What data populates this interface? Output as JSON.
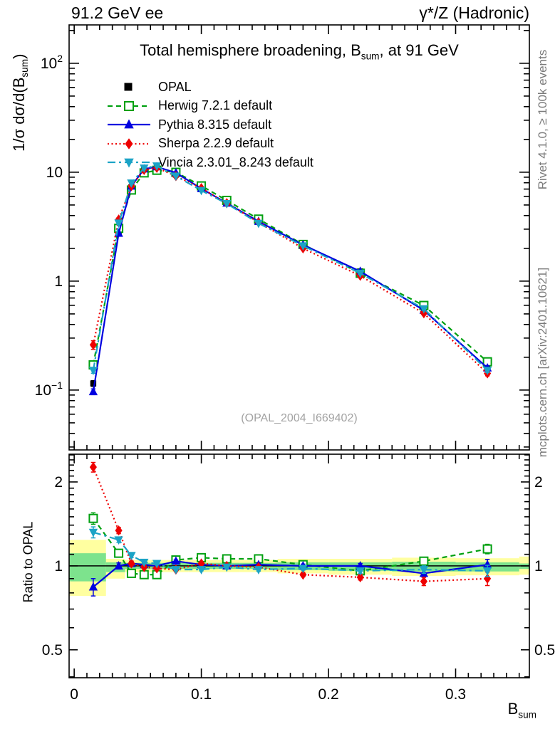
{
  "page": {
    "header_left": "91.2 GeV ee",
    "header_right": "γ*/Z (Hadronic)",
    "side_note_top": "Rivet 4.1.0, ≥ 100k events",
    "side_note_bottom": "mcplots.cern.ch [arXiv:2401.10621]",
    "watermark": "(OPAL_2004_I669402)"
  },
  "title": {
    "pre": "Total hemisphere broadening, B",
    "sub": "sum",
    "post": ", at 91 GeV"
  },
  "axis_labels": {
    "y_main_pre": "1/σ  dσ/d(B",
    "y_main_sub": "sum",
    "y_main_post": ")",
    "y_ratio": "Ratio to OPAL",
    "x_pre": "B",
    "x_sub": "sum"
  },
  "chart_data": {
    "type": "line",
    "title": "Total hemisphere broadening, B_sum, at 91 GeV",
    "x_axis": {
      "label": "B_sum",
      "range": [
        -0.004,
        0.358
      ],
      "minor_step": 0.01,
      "majors": [
        {
          "v": 0.0,
          "label": "0"
        },
        {
          "v": 0.1,
          "label": "0.1"
        },
        {
          "v": 0.2,
          "label": "0.2"
        },
        {
          "v": 0.3,
          "label": "0.3"
        }
      ]
    },
    "y_main_axis": {
      "scale": "log",
      "label": "1/σ dσ/d(B_sum)",
      "range": [
        0.0282,
        225
      ],
      "majors": [
        {
          "v": 100,
          "base": "10",
          "exp": "2"
        },
        {
          "v": 10,
          "base": "10",
          "exp": ""
        },
        {
          "v": 1,
          "base": "1",
          "exp": ""
        },
        {
          "v": 0.1,
          "base": "10",
          "exp": "−1"
        }
      ]
    },
    "y_ratio_axis": {
      "scale": "log",
      "label": "Ratio to OPAL",
      "range": [
        0.397,
        2.515
      ],
      "majors": [
        {
          "v": 2,
          "label": "2"
        },
        {
          "v": 1,
          "label": "1"
        },
        {
          "v": 0.5,
          "label": "0.5"
        }
      ]
    },
    "x_centers": [
      0.015,
      0.035,
      0.045,
      0.055,
      0.065,
      0.08,
      0.1,
      0.12,
      0.145,
      0.18,
      0.225,
      0.275,
      0.325
    ],
    "reference": {
      "name": "OPAL",
      "color": "#000000",
      "marker": "square",
      "values": [
        0.115,
        2.75,
        7.3,
        10.6,
        11.2,
        9.5,
        7.0,
        5.2,
        3.5,
        2.15,
        1.23,
        0.575,
        0.158
      ],
      "err_frac": [
        0.06,
        0.02,
        0.013,
        0.012,
        0.012,
        0.012,
        0.012,
        0.012,
        0.012,
        0.014,
        0.018,
        0.025,
        0.04
      ]
    },
    "series": [
      {
        "name": "Herwig 7.2.1 default",
        "color": "#00a010",
        "dash": "7 5",
        "marker": "square-open",
        "ratio": [
          1.48,
          1.11,
          0.94,
          0.93,
          0.93,
          1.05,
          1.07,
          1.06,
          1.06,
          1.01,
          0.96,
          1.04,
          1.15
        ],
        "ratio_err": [
          0.07,
          0.03,
          0.02,
          0.015,
          0.012,
          0.01,
          0.01,
          0.01,
          0.012,
          0.015,
          0.02,
          0.03,
          0.045
        ]
      },
      {
        "name": "Pythia 8.315 default",
        "color": "#0000e0",
        "dash": "",
        "marker": "triangle-up",
        "ratio": [
          0.84,
          1.0,
          1.02,
          1.01,
          1.0,
          1.04,
          1.01,
          1.0,
          1.01,
          1.0,
          1.0,
          0.94,
          1.01
        ],
        "ratio_err": [
          0.06,
          0.025,
          0.018,
          0.014,
          0.012,
          0.01,
          0.01,
          0.01,
          0.012,
          0.015,
          0.02,
          0.03,
          0.045
        ]
      },
      {
        "name": "Sherpa 2.2.9 default",
        "color": "#ee0000",
        "dash": "2 3.5",
        "marker": "diamond",
        "ratio": [
          2.26,
          1.34,
          1.02,
          0.99,
          0.98,
          0.97,
          1.02,
          1.0,
          0.99,
          0.93,
          0.91,
          0.88,
          0.9
        ],
        "ratio_err": [
          0.09,
          0.035,
          0.02,
          0.015,
          0.012,
          0.01,
          0.01,
          0.01,
          0.012,
          0.015,
          0.02,
          0.03,
          0.05
        ]
      },
      {
        "name": "Vincia 2.3.01_8.243 default",
        "color": "#1ba3c6",
        "dash": "11 5 3 5",
        "marker": "triangle-down",
        "ratio": [
          1.32,
          1.24,
          1.09,
          1.03,
          1.02,
          0.97,
          0.97,
          0.99,
          0.97,
          0.98,
          0.96,
          0.97,
          0.96
        ],
        "ratio_err": [
          0.06,
          0.025,
          0.018,
          0.014,
          0.012,
          0.01,
          0.01,
          0.01,
          0.012,
          0.015,
          0.02,
          0.03,
          0.045
        ]
      }
    ],
    "ratio_reference_line": 1,
    "uncertainty_band": {
      "yellow_color": "#ffffa0",
      "green_color": "#7de38d",
      "edges": [
        -0.004,
        0.025,
        0.04,
        0.05,
        0.06,
        0.07,
        0.09,
        0.11,
        0.13,
        0.16,
        0.2,
        0.25,
        0.3,
        0.35,
        0.358
      ],
      "yellow": [
        [
          0.78,
          1.24
        ],
        [
          0.9,
          1.06
        ],
        [
          0.95,
          1.05
        ],
        [
          0.95,
          1.05
        ],
        [
          0.95,
          1.05
        ],
        [
          0.95,
          1.05
        ],
        [
          0.95,
          1.05
        ],
        [
          0.95,
          1.05
        ],
        [
          0.95,
          1.05
        ],
        [
          0.94,
          1.06
        ],
        [
          0.93,
          1.06
        ],
        [
          0.92,
          1.07
        ],
        [
          0.925,
          1.065
        ],
        [
          0.93,
          1.08
        ]
      ],
      "green": [
        [
          0.88,
          1.11
        ],
        [
          0.95,
          1.03
        ],
        [
          0.975,
          1.025
        ],
        [
          0.975,
          1.025
        ],
        [
          0.975,
          1.025
        ],
        [
          0.975,
          1.025
        ],
        [
          0.975,
          1.025
        ],
        [
          0.975,
          1.025
        ],
        [
          0.975,
          1.025
        ],
        [
          0.965,
          1.03
        ],
        [
          0.96,
          1.03
        ],
        [
          0.955,
          1.035
        ],
        [
          0.955,
          1.03
        ],
        [
          0.975,
          1.02
        ]
      ]
    }
  }
}
